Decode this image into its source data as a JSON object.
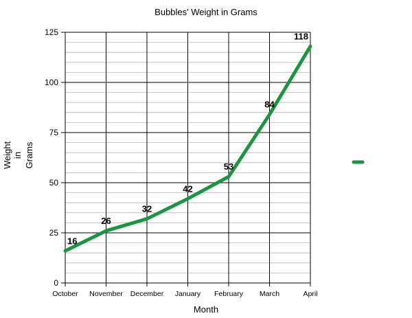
{
  "chart_data": {
    "type": "line",
    "title": "Bubbles' Weight in Grams",
    "xlabel": "Month",
    "ylabel": [
      "Weight",
      "in",
      "Grams"
    ],
    "categories": [
      "October",
      "November",
      "December",
      "January",
      "February",
      "March",
      "April"
    ],
    "series": [
      {
        "values": [
          16,
          26,
          32,
          42,
          53,
          84,
          118
        ],
        "color": "#1a9641"
      }
    ],
    "data_labels": [
      "16",
      "26",
      "32",
      "42",
      "53",
      "84",
      "118"
    ],
    "ylim": [
      0,
      125
    ],
    "yticks": [
      0,
      25,
      50,
      75,
      100,
      125
    ],
    "minor_grid_step": 5,
    "grid": true,
    "legend": "right"
  }
}
